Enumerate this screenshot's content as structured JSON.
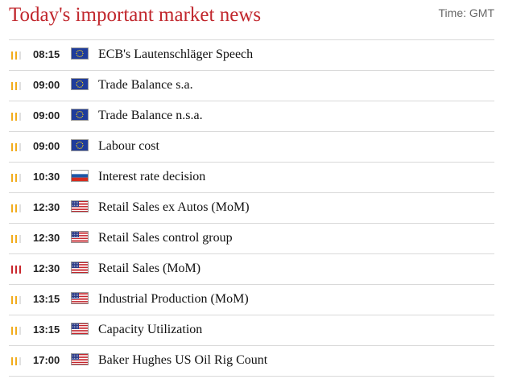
{
  "header": {
    "title": "Today's important market news",
    "timezone": "Time: GMT"
  },
  "events": [
    {
      "time": "08:15",
      "currency": "eu-flag-icon",
      "title": "ECB's Lautenschläger Speech",
      "importance": 2
    },
    {
      "time": "09:00",
      "currency": "eu-flag-icon",
      "title": "Trade Balance s.a.",
      "importance": 2
    },
    {
      "time": "09:00",
      "currency": "eu-flag-icon",
      "title": "Trade Balance n.s.a.",
      "importance": 2
    },
    {
      "time": "09:00",
      "currency": "eu-flag-icon",
      "title": "Labour cost",
      "importance": 2
    },
    {
      "time": "10:30",
      "currency": "ru-flag-icon",
      "title": "Interest rate decision",
      "importance": 2
    },
    {
      "time": "12:30",
      "currency": "us-flag-icon",
      "title": "Retail Sales ex Autos (MoM)",
      "importance": 2
    },
    {
      "time": "12:30",
      "currency": "us-flag-icon",
      "title": "Retail Sales control group",
      "importance": 2
    },
    {
      "time": "12:30",
      "currency": "us-flag-icon",
      "title": "Retail Sales (MoM)",
      "importance": 3
    },
    {
      "time": "13:15",
      "currency": "us-flag-icon",
      "title": "Industrial Production (MoM)",
      "importance": 2
    },
    {
      "time": "13:15",
      "currency": "us-flag-icon",
      "title": "Capacity Utilization",
      "importance": 2
    },
    {
      "time": "17:00",
      "currency": "us-flag-icon",
      "title": "Baker Hughes US Oil Rig Count",
      "importance": 2
    }
  ],
  "colors": {
    "title": "#c1272d",
    "medium": "#f2ac1c",
    "high": "#c9262c",
    "inactive": "#e0e0e0"
  }
}
